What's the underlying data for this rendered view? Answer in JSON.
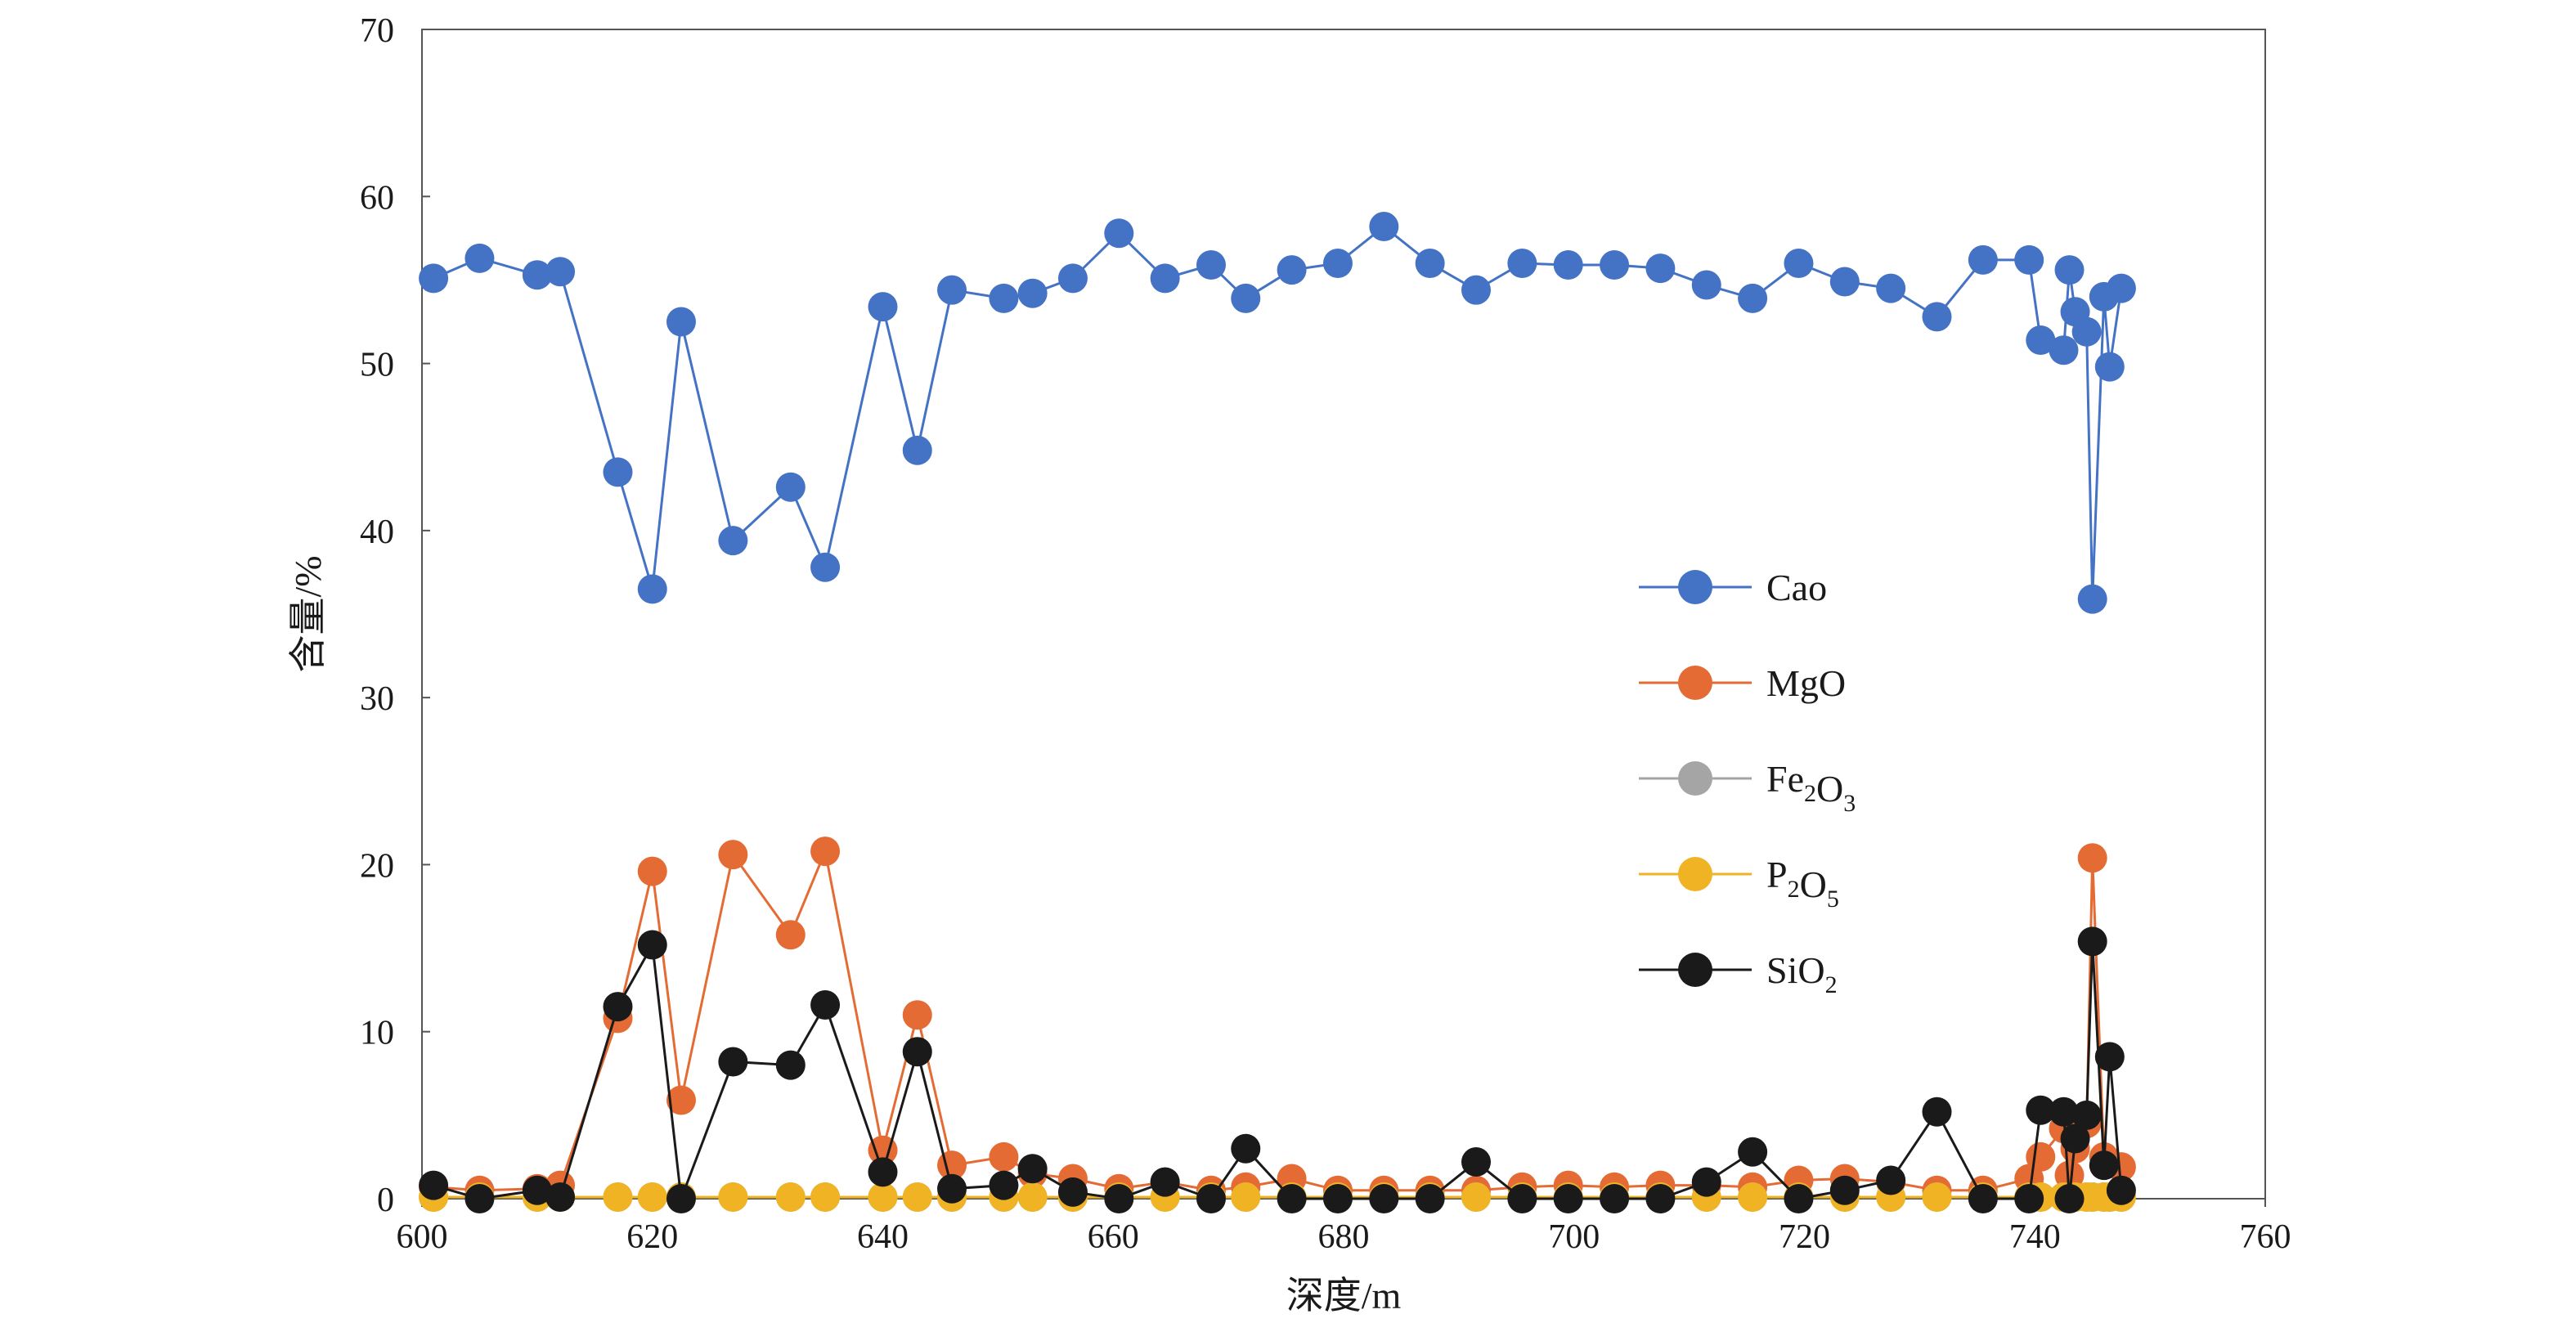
{
  "chart_data": {
    "type": "line",
    "title": "",
    "xlabel": "深度/m",
    "ylabel": "含量/%",
    "xlim": [
      600,
      760
    ],
    "ylim": [
      0,
      70
    ],
    "x_ticks": [
      600,
      620,
      640,
      660,
      680,
      700,
      720,
      740,
      760
    ],
    "y_ticks": [
      0,
      10,
      20,
      30,
      40,
      50,
      60,
      70
    ],
    "grid": false,
    "legend_position": "right",
    "series": [
      {
        "name": "Cao",
        "label_parts": [
          {
            "text": "Cao"
          }
        ],
        "color": "#4472C4",
        "points": [
          [
            601,
            55.1
          ],
          [
            605,
            56.3
          ],
          [
            610,
            55.3
          ],
          [
            612,
            55.5
          ],
          [
            617,
            43.5
          ],
          [
            620,
            36.5
          ],
          [
            622.5,
            52.5
          ],
          [
            627,
            39.4
          ],
          [
            632,
            42.6
          ],
          [
            635,
            37.8
          ],
          [
            640,
            53.4
          ],
          [
            643,
            44.8
          ],
          [
            646,
            54.4
          ],
          [
            650.5,
            53.9
          ],
          [
            653,
            54.2
          ],
          [
            656.5,
            55.1
          ],
          [
            660.5,
            57.8
          ],
          [
            664.5,
            55.1
          ],
          [
            668.5,
            55.9
          ],
          [
            671.5,
            53.9
          ],
          [
            675.5,
            55.6
          ],
          [
            679.5,
            56
          ],
          [
            683.5,
            58.2
          ],
          [
            687.5,
            56
          ],
          [
            691.5,
            54.4
          ],
          [
            695.5,
            56
          ],
          [
            699.5,
            55.9
          ],
          [
            703.5,
            55.9
          ],
          [
            707.5,
            55.7
          ],
          [
            711.5,
            54.7
          ],
          [
            715.5,
            53.9
          ],
          [
            719.5,
            56
          ],
          [
            723.5,
            54.9
          ],
          [
            727.5,
            54.5
          ],
          [
            731.5,
            52.8
          ],
          [
            735.5,
            56.2
          ],
          [
            739.5,
            56.2
          ],
          [
            740.5,
            51.4
          ],
          [
            742.5,
            50.8
          ],
          [
            743,
            55.6
          ],
          [
            743.5,
            53.1
          ],
          [
            744.5,
            51.9
          ],
          [
            745,
            35.9
          ],
          [
            746,
            54
          ],
          [
            746.5,
            49.8
          ],
          [
            747.5,
            54.5
          ]
        ]
      },
      {
        "name": "MgO",
        "label_parts": [
          {
            "text": "MgO"
          }
        ],
        "color": "#E46C34",
        "points": [
          [
            601,
            0.7
          ],
          [
            605,
            0.5
          ],
          [
            610,
            0.6
          ],
          [
            612,
            0.8
          ],
          [
            617,
            10.8
          ],
          [
            620,
            19.6
          ],
          [
            622.5,
            5.9
          ],
          [
            627,
            20.6
          ],
          [
            632,
            15.8
          ],
          [
            635,
            20.8
          ],
          [
            640,
            2.9
          ],
          [
            643,
            11
          ],
          [
            646,
            2
          ],
          [
            650.5,
            2.5
          ],
          [
            653,
            1.5
          ],
          [
            656.5,
            1.2
          ],
          [
            660.5,
            0.6
          ],
          [
            664.5,
            1
          ],
          [
            668.5,
            0.5
          ],
          [
            671.5,
            0.7
          ],
          [
            675.5,
            1.2
          ],
          [
            679.5,
            0.5
          ],
          [
            683.5,
            0.5
          ],
          [
            687.5,
            0.5
          ],
          [
            691.5,
            0.5
          ],
          [
            695.5,
            0.7
          ],
          [
            699.5,
            0.8
          ],
          [
            703.5,
            0.7
          ],
          [
            707.5,
            0.8
          ],
          [
            711.5,
            0.8
          ],
          [
            715.5,
            0.7
          ],
          [
            719.5,
            1.1
          ],
          [
            723.5,
            1.2
          ],
          [
            727.5,
            1
          ],
          [
            731.5,
            0.5
          ],
          [
            735.5,
            0.5
          ],
          [
            739.5,
            1.2
          ],
          [
            740.5,
            2.5
          ],
          [
            742.5,
            4.2
          ],
          [
            743,
            1.4
          ],
          [
            743.5,
            3
          ],
          [
            744.5,
            4.5
          ],
          [
            745,
            20.4
          ],
          [
            746,
            2.5
          ],
          [
            746.5,
            2.1
          ],
          [
            747.5,
            1.9
          ]
        ]
      },
      {
        "name": "Fe2O3",
        "label_parts": [
          {
            "text": "Fe"
          },
          {
            "text": "2",
            "sub": true
          },
          {
            "text": "O"
          },
          {
            "text": "3",
            "sub": true
          }
        ],
        "color": "#A5A5A5",
        "points": [
          [
            601,
            0.1
          ],
          [
            605,
            0.1
          ],
          [
            610,
            0.1
          ],
          [
            612,
            0.1
          ],
          [
            617,
            0.1
          ],
          [
            620,
            0.1
          ],
          [
            622.5,
            0.1
          ],
          [
            627,
            0.1
          ],
          [
            632,
            0.1
          ],
          [
            635,
            0.1
          ],
          [
            640,
            0.1
          ],
          [
            643,
            0.1
          ],
          [
            646,
            0.1
          ],
          [
            650.5,
            0.1
          ],
          [
            653,
            0.1
          ],
          [
            656.5,
            0.1
          ],
          [
            660.5,
            0.1
          ],
          [
            664.5,
            0.1
          ],
          [
            668.5,
            0.1
          ],
          [
            671.5,
            0.1
          ],
          [
            675.5,
            0.1
          ],
          [
            679.5,
            0.1
          ],
          [
            683.5,
            0.1
          ],
          [
            687.5,
            0.1
          ],
          [
            691.5,
            0.1
          ],
          [
            695.5,
            0.1
          ],
          [
            699.5,
            0.1
          ],
          [
            703.5,
            0.1
          ],
          [
            707.5,
            0.1
          ],
          [
            711.5,
            0.1
          ],
          [
            715.5,
            0.1
          ],
          [
            719.5,
            0.1
          ],
          [
            723.5,
            0.1
          ],
          [
            727.5,
            0.1
          ],
          [
            731.5,
            0.1
          ],
          [
            735.5,
            0.1
          ],
          [
            739.5,
            0.1
          ],
          [
            740.5,
            0.1
          ],
          [
            742.5,
            0.1
          ],
          [
            743,
            0.1
          ],
          [
            743.5,
            0.1
          ],
          [
            744.5,
            0.1
          ],
          [
            745,
            0.1
          ],
          [
            746,
            0.1
          ],
          [
            746.5,
            0.1
          ],
          [
            747.5,
            0.1
          ]
        ]
      },
      {
        "name": "P2O5",
        "label_parts": [
          {
            "text": "P"
          },
          {
            "text": "2",
            "sub": true
          },
          {
            "text": "O"
          },
          {
            "text": "5",
            "sub": true
          }
        ],
        "color": "#F0B323",
        "points": [
          [
            601,
            0.1
          ],
          [
            605,
            0.1
          ],
          [
            610,
            0.1
          ],
          [
            612,
            0.1
          ],
          [
            617,
            0.1
          ],
          [
            620,
            0.1
          ],
          [
            622.5,
            0.1
          ],
          [
            627,
            0.1
          ],
          [
            632,
            0.1
          ],
          [
            635,
            0.1
          ],
          [
            640,
            0.1
          ],
          [
            643,
            0.1
          ],
          [
            646,
            0.1
          ],
          [
            650.5,
            0.1
          ],
          [
            653,
            0.1
          ],
          [
            656.5,
            0.1
          ],
          [
            660.5,
            0.1
          ],
          [
            664.5,
            0.1
          ],
          [
            668.5,
            0.1
          ],
          [
            671.5,
            0.1
          ],
          [
            675.5,
            0.1
          ],
          [
            679.5,
            0.1
          ],
          [
            683.5,
            0.1
          ],
          [
            687.5,
            0.1
          ],
          [
            691.5,
            0.1
          ],
          [
            695.5,
            0.1
          ],
          [
            699.5,
            0.1
          ],
          [
            703.5,
            0.1
          ],
          [
            707.5,
            0.1
          ],
          [
            711.5,
            0.1
          ],
          [
            715.5,
            0.1
          ],
          [
            719.5,
            0.1
          ],
          [
            723.5,
            0.1
          ],
          [
            727.5,
            0.1
          ],
          [
            731.5,
            0.1
          ],
          [
            735.5,
            0.1
          ],
          [
            739.5,
            0.1
          ],
          [
            740.5,
            0.1
          ],
          [
            742.5,
            0.1
          ],
          [
            743,
            0.1
          ],
          [
            743.5,
            0.1
          ],
          [
            744.5,
            0.1
          ],
          [
            745,
            0.1
          ],
          [
            746,
            0.1
          ],
          [
            746.5,
            0.1
          ],
          [
            747.5,
            0.1
          ]
        ]
      },
      {
        "name": "SiO2",
        "label_parts": [
          {
            "text": "SiO"
          },
          {
            "text": "2",
            "sub": true
          }
        ],
        "color": "#1A1A1A",
        "points": [
          [
            601,
            0.8
          ],
          [
            605,
            0
          ],
          [
            610,
            0.5
          ],
          [
            612,
            0.1
          ],
          [
            617,
            11.5
          ],
          [
            620,
            15.2
          ],
          [
            622.5,
            0
          ],
          [
            627,
            8.2
          ],
          [
            632,
            8
          ],
          [
            635,
            11.6
          ],
          [
            640,
            1.6
          ],
          [
            643,
            8.8
          ],
          [
            646,
            0.6
          ],
          [
            650.5,
            0.8
          ],
          [
            653,
            1.8
          ],
          [
            656.5,
            0.4
          ],
          [
            660.5,
            0
          ],
          [
            664.5,
            1
          ],
          [
            668.5,
            0
          ],
          [
            671.5,
            3
          ],
          [
            675.5,
            0
          ],
          [
            679.5,
            0
          ],
          [
            683.5,
            0
          ],
          [
            687.5,
            0
          ],
          [
            691.5,
            2.2
          ],
          [
            695.5,
            0
          ],
          [
            699.5,
            0
          ],
          [
            703.5,
            0
          ],
          [
            707.5,
            0
          ],
          [
            711.5,
            1
          ],
          [
            715.5,
            2.8
          ],
          [
            719.5,
            0
          ],
          [
            723.5,
            0.5
          ],
          [
            727.5,
            1.1
          ],
          [
            731.5,
            5.2
          ],
          [
            735.5,
            0
          ],
          [
            739.5,
            0
          ],
          [
            740.5,
            5.3
          ],
          [
            742.5,
            5.2
          ],
          [
            743,
            0
          ],
          [
            743.5,
            3.6
          ],
          [
            744.5,
            5
          ],
          [
            745,
            15.4
          ],
          [
            746,
            2
          ],
          [
            746.5,
            8.5
          ],
          [
            747.5,
            0.5
          ]
        ]
      }
    ]
  }
}
